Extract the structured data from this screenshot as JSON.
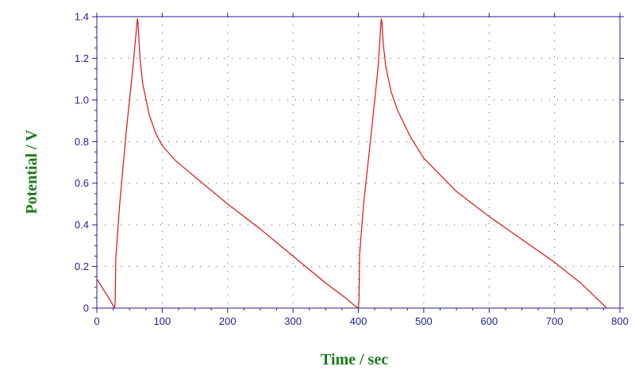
{
  "chart_data": {
    "type": "line",
    "title": "",
    "xlabel": "Time / sec",
    "ylabel": "Potential / V",
    "xlim": [
      0,
      800
    ],
    "ylim": [
      0,
      1.4
    ],
    "x_ticks": [
      0,
      100,
      200,
      300,
      400,
      500,
      600,
      700,
      800
    ],
    "y_ticks": [
      0,
      0.2,
      0.4,
      0.6,
      0.8,
      1.0,
      1.2,
      1.4
    ],
    "x_tick_labels": [
      "0",
      "100",
      "200",
      "300",
      "400",
      "500",
      "600",
      "700",
      "800"
    ],
    "y_tick_labels": [
      "0",
      "0.2",
      "0.4",
      "0.6",
      "0.8",
      "1.0",
      "1.2",
      "1.4"
    ],
    "grid": true,
    "grid_style": "dotted",
    "colors": {
      "series": "#e01010",
      "axes": "#1f1f9a",
      "axis_title": "#1a7a1a",
      "grid": "#555555"
    },
    "series": [
      {
        "x": [
          0,
          10,
          20,
          27,
          28,
          29,
          35,
          45,
          55,
          62,
          63,
          66,
          70,
          80,
          90,
          100,
          120,
          150,
          200,
          250,
          300,
          350,
          380,
          395,
          400,
          401,
          402,
          408,
          420,
          430,
          435,
          436,
          438,
          442,
          450,
          460,
          480,
          500,
          550,
          600,
          650,
          700,
          740,
          770,
          780
        ],
        "y": [
          0.14,
          0.09,
          0.04,
          0.0,
          0.03,
          0.24,
          0.5,
          0.85,
          1.15,
          1.39,
          1.37,
          1.2,
          1.08,
          0.93,
          0.84,
          0.78,
          0.71,
          0.63,
          0.5,
          0.38,
          0.25,
          0.12,
          0.05,
          0.01,
          0.0,
          0.04,
          0.26,
          0.5,
          0.85,
          1.15,
          1.39,
          1.37,
          1.27,
          1.16,
          1.04,
          0.95,
          0.82,
          0.72,
          0.56,
          0.44,
          0.33,
          0.22,
          0.12,
          0.03,
          0.0
        ]
      }
    ]
  }
}
